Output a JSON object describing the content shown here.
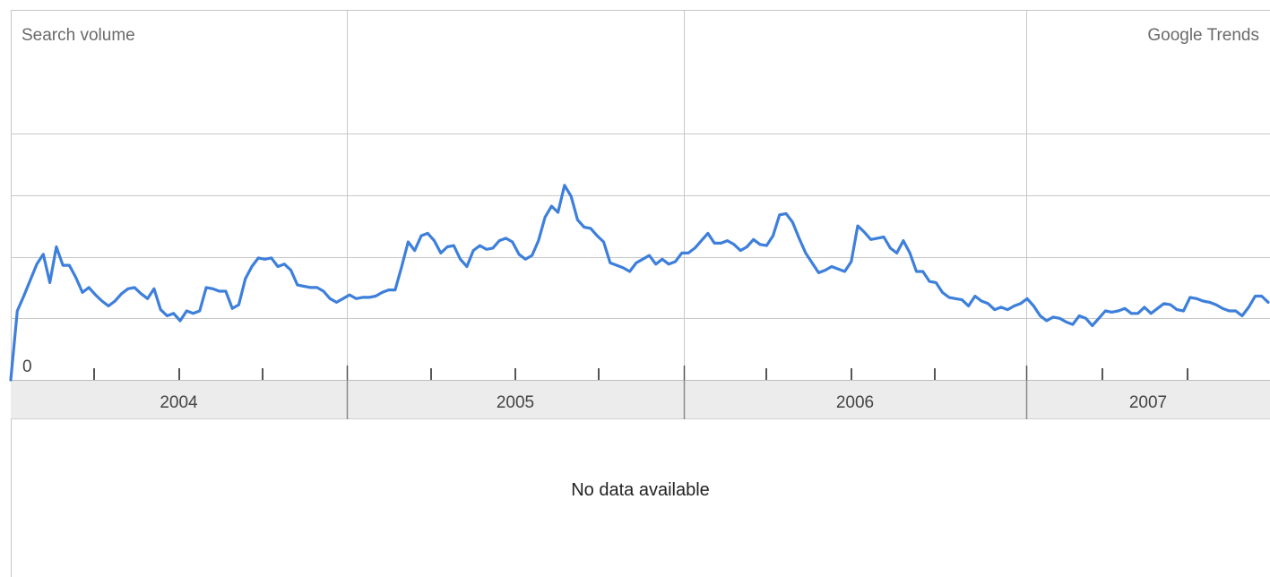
{
  "header": {
    "y_axis_title": "Search volume",
    "brand": "Google Trends"
  },
  "secondary_panel": {
    "message": "No data available"
  },
  "colors": {
    "line": "#3d7fdb",
    "grid": "#c8c8c8",
    "year_band": "#ececec"
  },
  "chart_data": {
    "type": "line",
    "title": "",
    "xlabel": "",
    "ylabel": "Search volume",
    "x_tick_labels": [
      "2004",
      "2005",
      "2006",
      "2007"
    ],
    "ylim": [
      0,
      2
    ],
    "y_tick_labels": [
      "0"
    ],
    "grid": true,
    "series": [
      {
        "values": [
          0.0,
          0.56,
          0.68,
          0.81,
          0.94,
          1.02,
          0.79,
          1.08,
          0.93,
          0.93,
          0.83,
          0.71,
          0.75,
          0.69,
          0.64,
          0.6,
          0.64,
          0.7,
          0.74,
          0.75,
          0.7,
          0.66,
          0.74,
          0.57,
          0.52,
          0.54,
          0.48,
          0.56,
          0.54,
          0.56,
          0.75,
          0.74,
          0.72,
          0.72,
          0.58,
          0.61,
          0.82,
          0.92,
          0.99,
          0.98,
          0.99,
          0.92,
          0.94,
          0.89,
          0.77,
          0.76,
          0.75,
          0.75,
          0.72,
          0.66,
          0.63,
          0.66,
          0.69,
          0.66,
          0.67,
          0.67,
          0.68,
          0.71,
          0.73,
          0.73,
          0.92,
          1.12,
          1.05,
          1.17,
          1.19,
          1.13,
          1.03,
          1.08,
          1.09,
          0.98,
          0.92,
          1.05,
          1.09,
          1.06,
          1.07,
          1.13,
          1.15,
          1.12,
          1.02,
          0.98,
          1.01,
          1.13,
          1.32,
          1.41,
          1.36,
          1.58,
          1.49,
          1.3,
          1.24,
          1.23,
          1.17,
          1.12,
          0.95,
          0.93,
          0.91,
          0.88,
          0.95,
          0.98,
          1.01,
          0.94,
          0.98,
          0.94,
          0.96,
          1.03,
          1.03,
          1.07,
          1.13,
          1.19,
          1.11,
          1.11,
          1.13,
          1.1,
          1.05,
          1.08,
          1.14,
          1.1,
          1.09,
          1.17,
          1.34,
          1.35,
          1.28,
          1.15,
          1.03,
          0.95,
          0.87,
          0.89,
          0.92,
          0.9,
          0.88,
          0.96,
          1.25,
          1.2,
          1.14,
          1.15,
          1.16,
          1.07,
          1.03,
          1.13,
          1.03,
          0.88,
          0.88,
          0.8,
          0.79,
          0.71,
          0.67,
          0.66,
          0.65,
          0.6,
          0.68,
          0.64,
          0.62,
          0.57,
          0.59,
          0.57,
          0.6,
          0.62,
          0.66,
          0.6,
          0.52,
          0.48,
          0.51,
          0.5,
          0.47,
          0.45,
          0.52,
          0.5,
          0.44,
          0.5,
          0.56,
          0.55,
          0.56,
          0.58,
          0.54,
          0.54,
          0.59,
          0.54,
          0.58,
          0.62,
          0.61,
          0.57,
          0.56,
          0.67,
          0.66,
          0.64,
          0.63,
          0.61,
          0.58,
          0.56,
          0.56,
          0.52,
          0.59,
          0.68,
          0.68,
          0.63
        ]
      }
    ]
  }
}
